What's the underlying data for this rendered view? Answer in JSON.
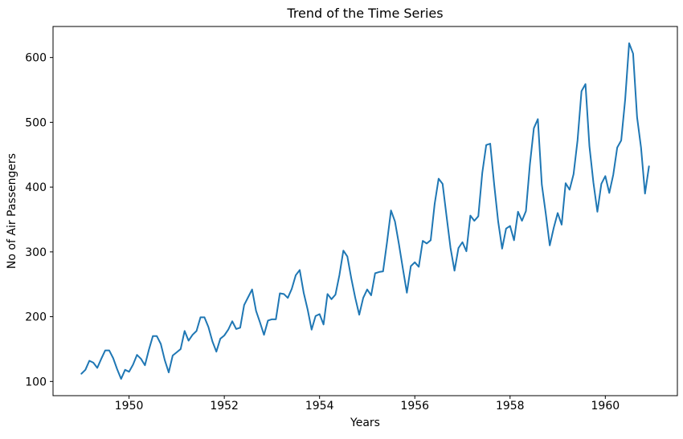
{
  "chart_data": {
    "type": "line",
    "title": "Trend of the Time Series",
    "xlabel": "Years",
    "ylabel": "No of Air Passengers",
    "grid": false,
    "legend": false,
    "xlim": [
      1948.404,
      1961.513
    ],
    "ylim": [
      78.1,
      647.9
    ],
    "xticks": [
      "1950",
      "1952",
      "1954",
      "1956",
      "1958",
      "1960"
    ],
    "xtick_values": [
      1950,
      1952,
      1954,
      1956,
      1958,
      1960
    ],
    "yticks": [
      "100",
      "200",
      "300",
      "400",
      "500",
      "600"
    ],
    "ytick_values": [
      100,
      200,
      300,
      400,
      500,
      600
    ],
    "series": [
      {
        "name": "No of Air Passengers",
        "color": "#1f77b4",
        "x_start_year": 1949,
        "x_step_months": 1,
        "values": [
          112,
          118,
          132,
          129,
          121,
          135,
          148,
          148,
          136,
          119,
          104,
          118,
          115,
          126,
          141,
          135,
          125,
          149,
          170,
          170,
          158,
          133,
          114,
          140,
          145,
          150,
          178,
          163,
          172,
          178,
          199,
          199,
          184,
          162,
          146,
          166,
          171,
          180,
          193,
          181,
          183,
          218,
          230,
          242,
          209,
          191,
          172,
          194,
          196,
          196,
          236,
          235,
          229,
          243,
          264,
          272,
          237,
          211,
          180,
          201,
          204,
          188,
          235,
          227,
          234,
          264,
          302,
          293,
          259,
          229,
          203,
          229,
          242,
          233,
          267,
          269,
          270,
          315,
          364,
          347,
          312,
          274,
          237,
          278,
          284,
          277,
          317,
          313,
          318,
          374,
          413,
          405,
          355,
          306,
          271,
          306,
          315,
          301,
          356,
          348,
          355,
          422,
          465,
          467,
          404,
          347,
          305,
          336,
          340,
          318,
          362,
          348,
          363,
          435,
          491,
          505,
          404,
          359,
          310,
          337,
          360,
          342,
          406,
          396,
          420,
          472,
          548,
          559,
          463,
          407,
          362,
          405,
          417,
          391,
          419,
          461,
          472,
          535,
          622,
          606,
          508,
          461,
          390,
          432
        ]
      }
    ]
  },
  "figure": {
    "background": "#ffffff",
    "axis_color": "#000000",
    "text_color": "#000000"
  }
}
